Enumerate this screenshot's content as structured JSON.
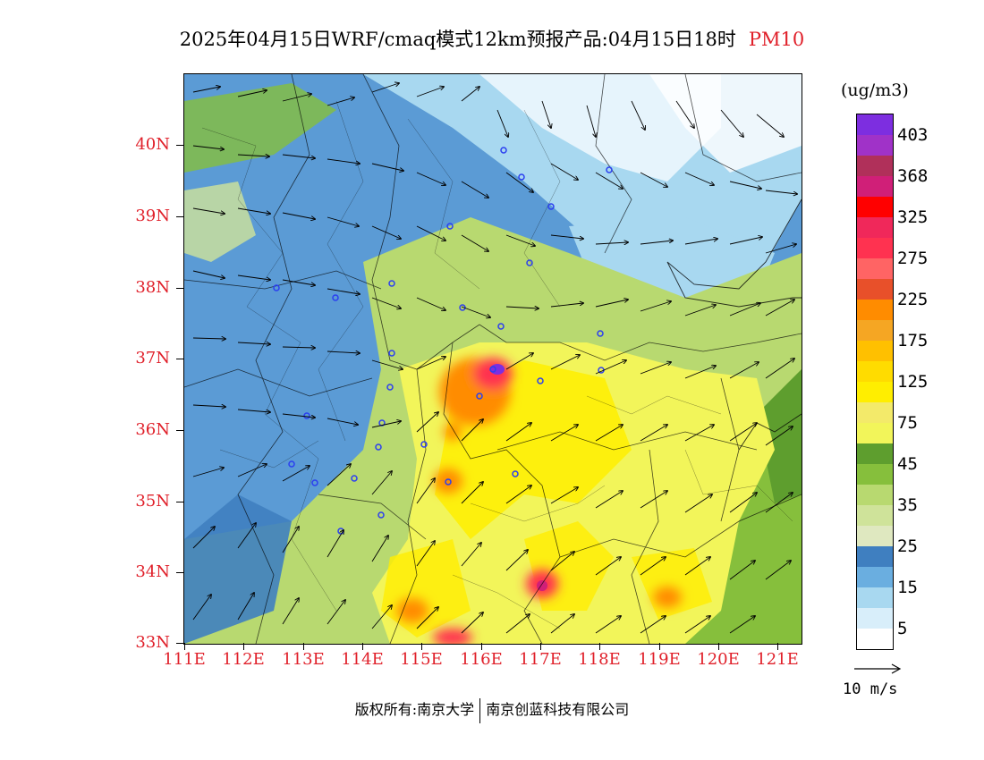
{
  "title": {
    "main": "2025年04月15日WRF/cmaq模式12km预报产品:04月15日18时",
    "variable": "PM10"
  },
  "map": {
    "lat_labels": [
      "40N",
      "39N",
      "38N",
      "37N",
      "36N",
      "35N",
      "34N",
      "33N"
    ],
    "lon_labels": [
      "111E",
      "112E",
      "113E",
      "114E",
      "115E",
      "116E",
      "117E",
      "118E",
      "119E",
      "120E",
      "121E"
    ],
    "lat_range": [
      33,
      41
    ],
    "lon_range": [
      111,
      121.4
    ]
  },
  "legend": {
    "unit": "(ug/m3)",
    "levels": [
      {
        "label": "403",
        "color": "#7d2ee0"
      },
      {
        "label": "",
        "color": "#a032c8"
      },
      {
        "label": "368",
        "color": "#b0305a"
      },
      {
        "label": "",
        "color": "#d01f78"
      },
      {
        "label": "325",
        "color": "#ff0000"
      },
      {
        "label": "",
        "color": "#f0285a"
      },
      {
        "label": "275",
        "color": "#ff3250"
      },
      {
        "label": "",
        "color": "#ff6464"
      },
      {
        "label": "225",
        "color": "#e8502a"
      },
      {
        "label": "",
        "color": "#ff8c00"
      },
      {
        "label": "175",
        "color": "#f5a623"
      },
      {
        "label": "",
        "color": "#ffc000"
      },
      {
        "label": "125",
        "color": "#ffdc00"
      },
      {
        "label": "",
        "color": "#ffee00"
      },
      {
        "label": "75",
        "color": "#f3ea6a"
      },
      {
        "label": "",
        "color": "#f2f55a"
      },
      {
        "label": "45",
        "color": "#5e9e2e"
      },
      {
        "label": "",
        "color": "#86bf3c"
      },
      {
        "label": "35",
        "color": "#b8d970"
      },
      {
        "label": "",
        "color": "#cfe39a"
      },
      {
        "label": "25",
        "color": "#dfe8c0"
      },
      {
        "label": "",
        "color": "#3f7fc0"
      },
      {
        "label": "15",
        "color": "#6aaee0"
      },
      {
        "label": "",
        "color": "#a8d8f0"
      },
      {
        "label": "5",
        "color": "#d8eefa"
      },
      {
        "label": "",
        "color": "#ffffff"
      }
    ],
    "wind_ref_label": "10 m/s"
  },
  "footer": {
    "copyright_left": "版权所有:南京大学",
    "copyright_right": "南京创蓝科技有限公司"
  }
}
